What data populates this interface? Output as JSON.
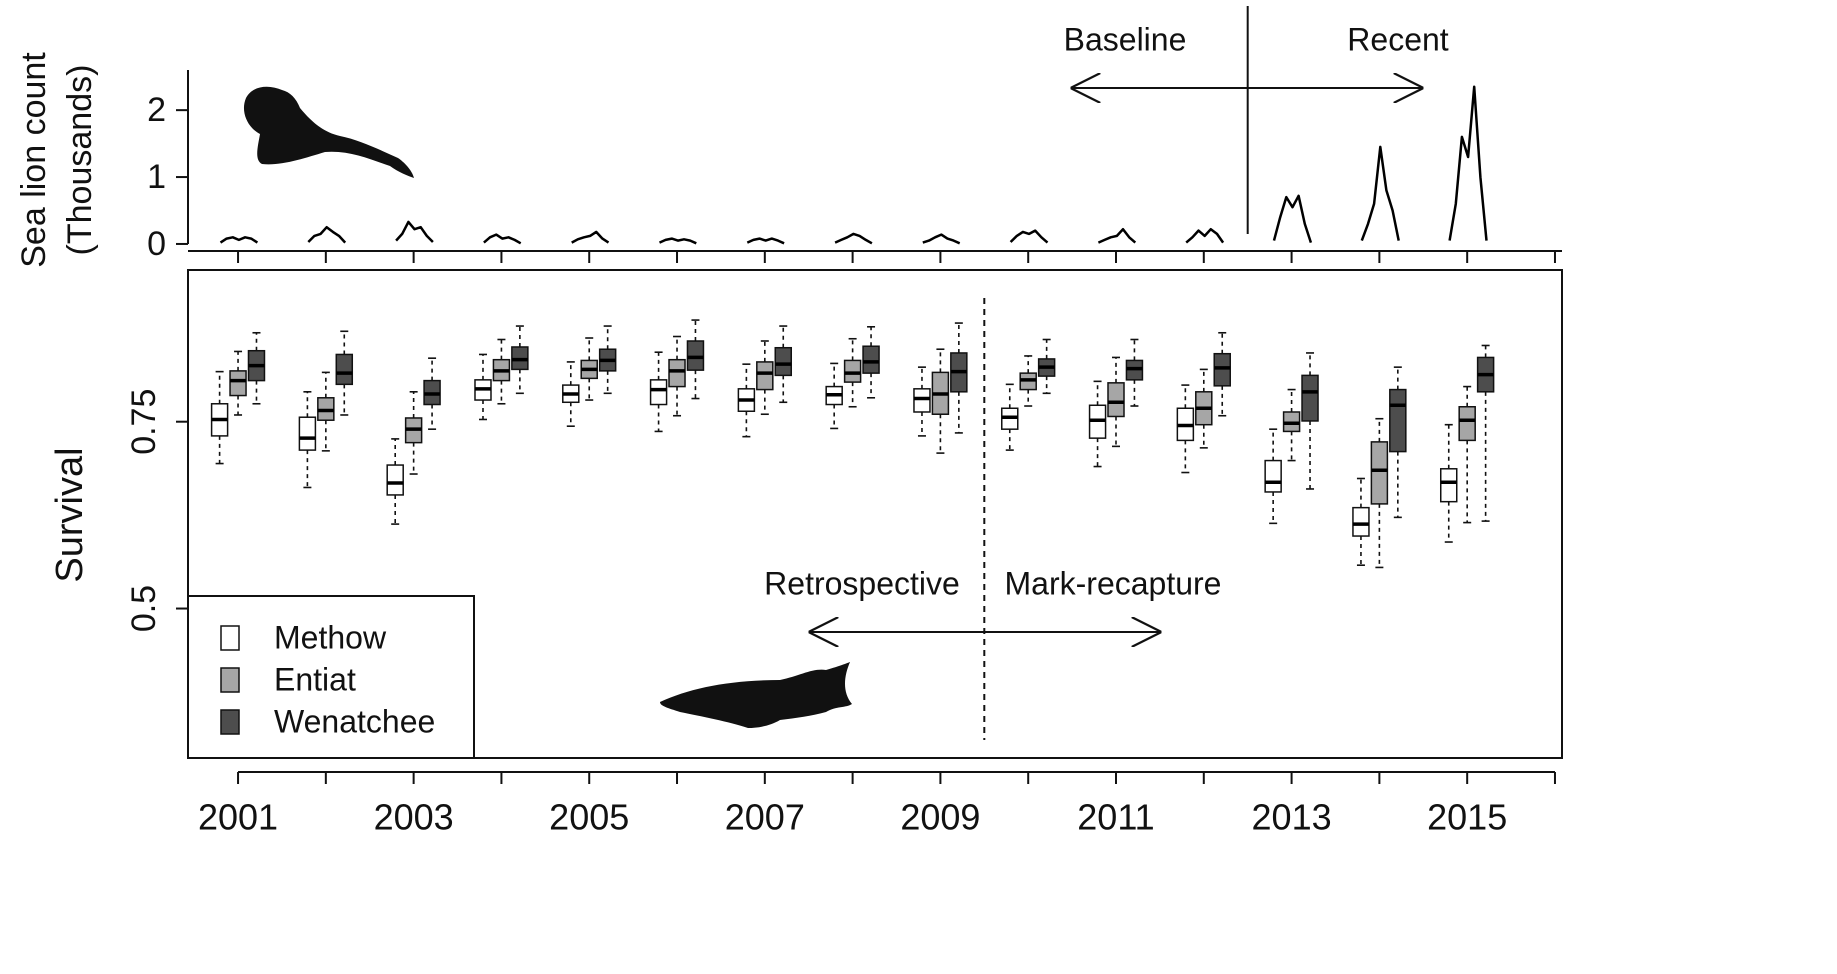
{
  "chart_data": [
    {
      "type": "line",
      "ylabel": [
        "Sea lion count",
        "(Thousands)"
      ],
      "xlim": [
        2000.43,
        2016.08
      ],
      "xticks": [
        2001,
        2002,
        2003,
        2004,
        2005,
        2006,
        2007,
        2008,
        2009,
        2010,
        2011,
        2012,
        2013,
        2014,
        2015,
        2016
      ],
      "ylim": [
        -0.15,
        2.6
      ],
      "yticks": [
        0,
        1,
        2
      ],
      "annotations": [
        "Baseline",
        "Recent"
      ],
      "vline": 2012.5,
      "color": "#000000",
      "x": [
        2000.8,
        2000.87,
        2000.94,
        2001.01,
        2001.08,
        2001.15,
        2001.22,
        null,
        2001.8,
        2001.87,
        2001.94,
        2002.01,
        2002.08,
        2002.15,
        2002.22,
        null,
        2002.8,
        2002.87,
        2002.94,
        2003.01,
        2003.08,
        2003.15,
        2003.22,
        null,
        2003.8,
        2003.87,
        2003.94,
        2004.01,
        2004.08,
        2004.15,
        2004.22,
        null,
        2004.8,
        2004.87,
        2004.94,
        2005.01,
        2005.08,
        2005.15,
        2005.22,
        null,
        2005.8,
        2005.87,
        2005.94,
        2006.01,
        2006.08,
        2006.15,
        2006.22,
        null,
        2006.8,
        2006.87,
        2006.94,
        2007.01,
        2007.08,
        2007.15,
        2007.22,
        null,
        2007.8,
        2007.87,
        2007.94,
        2008.01,
        2008.08,
        2008.15,
        2008.22,
        null,
        2008.8,
        2008.87,
        2008.94,
        2009.01,
        2009.08,
        2009.15,
        2009.22,
        null,
        2009.8,
        2009.87,
        2009.94,
        2010.01,
        2010.08,
        2010.15,
        2010.22,
        null,
        2010.8,
        2010.87,
        2010.94,
        2011.01,
        2011.08,
        2011.15,
        2011.22,
        null,
        2011.8,
        2011.87,
        2011.94,
        2012.01,
        2012.08,
        2012.15,
        2012.22,
        null,
        2012.8,
        2012.87,
        2012.94,
        2013.01,
        2013.08,
        2013.15,
        2013.22,
        null,
        2013.8,
        2013.87,
        2013.94,
        2014.01,
        2014.08,
        2014.15,
        2014.22,
        null,
        2014.8,
        2014.87,
        2014.94,
        2015.01,
        2015.08,
        2015.15,
        2015.22
      ],
      "values": [
        0.02,
        0.08,
        0.1,
        0.06,
        0.1,
        0.08,
        0.02,
        null,
        0.03,
        0.12,
        0.15,
        0.25,
        0.18,
        0.12,
        0.02,
        null,
        0.05,
        0.15,
        0.33,
        0.22,
        0.25,
        0.12,
        0.03,
        null,
        0.02,
        0.1,
        0.14,
        0.08,
        0.1,
        0.06,
        0.01,
        null,
        0.02,
        0.07,
        0.1,
        0.12,
        0.18,
        0.08,
        0.02,
        null,
        0.02,
        0.06,
        0.08,
        0.05,
        0.07,
        0.05,
        0.01,
        null,
        0.02,
        0.06,
        0.08,
        0.05,
        0.08,
        0.05,
        0.01,
        null,
        0.02,
        0.06,
        0.1,
        0.15,
        0.12,
        0.06,
        0.01,
        null,
        0.02,
        0.05,
        0.1,
        0.14,
        0.08,
        0.05,
        0.01,
        null,
        0.03,
        0.12,
        0.18,
        0.15,
        0.2,
        0.1,
        0.02,
        null,
        0.02,
        0.06,
        0.1,
        0.12,
        0.22,
        0.1,
        0.02,
        null,
        0.02,
        0.1,
        0.2,
        0.12,
        0.22,
        0.15,
        0.02,
        null,
        0.05,
        0.4,
        0.7,
        0.55,
        0.72,
        0.3,
        0.02,
        null,
        0.05,
        0.3,
        0.6,
        1.45,
        0.8,
        0.5,
        0.05,
        null,
        0.05,
        0.6,
        1.6,
        1.3,
        2.35,
        1.0,
        0.05
      ]
    },
    {
      "type": "box",
      "ylabel": "Survival",
      "xlim": [
        2000.43,
        2016.08
      ],
      "xticks": [
        2001,
        2003,
        2005,
        2007,
        2009,
        2011,
        2013,
        2015
      ],
      "xminor_ticks": [
        2002,
        2004,
        2006,
        2008,
        2010,
        2012,
        2014,
        2016
      ],
      "ylim": [
        0.3,
        0.953
      ],
      "yticks": [
        0.5,
        0.75
      ],
      "annotations": [
        "Retrospective",
        "Mark-recapture"
      ],
      "vline": 2009.5,
      "legend": "bottom-left",
      "x": [
        2001,
        2002,
        2003,
        2004,
        2005,
        2006,
        2007,
        2008,
        2009,
        2010,
        2011,
        2012,
        2013,
        2014,
        2015
      ],
      "series": [
        {
          "name": "Methow",
          "color": "#ffffff",
          "whisker_low": [
            0.694,
            0.662,
            0.613,
            0.753,
            0.744,
            0.737,
            0.73,
            0.741,
            0.731,
            0.712,
            0.69,
            0.682,
            0.614,
            0.558,
            0.589
          ],
          "q1": [
            0.731,
            0.712,
            0.652,
            0.779,
            0.776,
            0.773,
            0.764,
            0.773,
            0.763,
            0.74,
            0.728,
            0.725,
            0.656,
            0.597,
            0.643
          ],
          "median": [
            0.753,
            0.728,
            0.668,
            0.794,
            0.787,
            0.793,
            0.779,
            0.786,
            0.781,
            0.756,
            0.752,
            0.745,
            0.669,
            0.613,
            0.669
          ],
          "q3": [
            0.774,
            0.756,
            0.692,
            0.806,
            0.799,
            0.806,
            0.794,
            0.797,
            0.794,
            0.768,
            0.772,
            0.768,
            0.698,
            0.635,
            0.687
          ],
          "whisker_high": [
            0.817,
            0.79,
            0.727,
            0.84,
            0.83,
            0.843,
            0.827,
            0.828,
            0.823,
            0.8,
            0.804,
            0.799,
            0.74,
            0.674,
            0.746
          ]
        },
        {
          "name": "Entiat",
          "color": "#a6a6a6",
          "whisker_low": [
            0.759,
            0.711,
            0.68,
            0.774,
            0.779,
            0.758,
            0.76,
            0.77,
            0.708,
            0.771,
            0.717,
            0.715,
            0.698,
            0.555,
            0.615
          ],
          "q1": [
            0.785,
            0.752,
            0.722,
            0.805,
            0.808,
            0.797,
            0.793,
            0.803,
            0.76,
            0.793,
            0.757,
            0.746,
            0.737,
            0.64,
            0.725
          ],
          "median": [
            0.805,
            0.765,
            0.74,
            0.818,
            0.82,
            0.818,
            0.815,
            0.815,
            0.787,
            0.806,
            0.776,
            0.768,
            0.748,
            0.685,
            0.752
          ],
          "q3": [
            0.818,
            0.782,
            0.755,
            0.833,
            0.832,
            0.833,
            0.83,
            0.832,
            0.816,
            0.815,
            0.802,
            0.79,
            0.763,
            0.723,
            0.77
          ],
          "whisker_high": [
            0.844,
            0.816,
            0.79,
            0.86,
            0.862,
            0.864,
            0.858,
            0.861,
            0.847,
            0.838,
            0.836,
            0.82,
            0.793,
            0.754,
            0.797
          ]
        },
        {
          "name": "Wenatchee",
          "color": "#4d4d4d",
          "whisker_low": [
            0.774,
            0.759,
            0.74,
            0.788,
            0.788,
            0.781,
            0.776,
            0.782,
            0.735,
            0.788,
            0.771,
            0.758,
            0.66,
            0.622,
            0.617
          ],
          "q1": [
            0.805,
            0.8,
            0.773,
            0.82,
            0.818,
            0.819,
            0.812,
            0.815,
            0.79,
            0.811,
            0.806,
            0.798,
            0.751,
            0.71,
            0.79
          ],
          "median": [
            0.825,
            0.815,
            0.787,
            0.833,
            0.832,
            0.836,
            0.827,
            0.83,
            0.817,
            0.823,
            0.821,
            0.822,
            0.79,
            0.772,
            0.813
          ],
          "q3": [
            0.845,
            0.84,
            0.805,
            0.85,
            0.847,
            0.858,
            0.849,
            0.851,
            0.842,
            0.834,
            0.832,
            0.841,
            0.812,
            0.793,
            0.836
          ],
          "whisker_high": [
            0.869,
            0.871,
            0.835,
            0.878,
            0.878,
            0.886,
            0.878,
            0.877,
            0.882,
            0.86,
            0.86,
            0.869,
            0.842,
            0.823,
            0.852
          ]
        }
      ]
    }
  ]
}
